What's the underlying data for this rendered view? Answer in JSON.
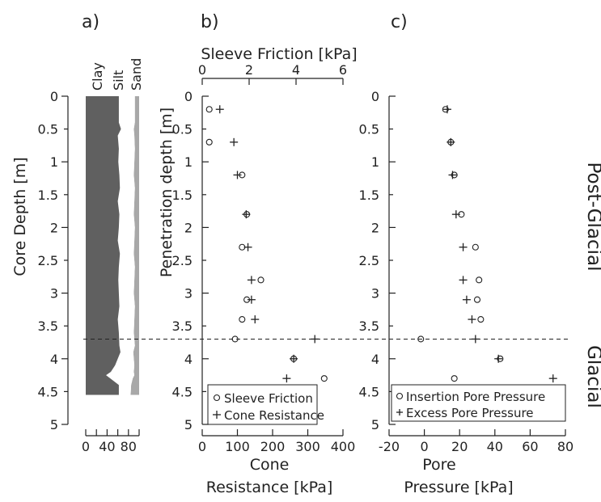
{
  "chart_data": [
    {
      "panel": "a)",
      "type": "area",
      "ylabel": "Core Depth [m]",
      "y_ticks": [
        "0",
        "0.5",
        "1",
        "1.5",
        "2",
        "2.5",
        "3",
        "3.5",
        "4",
        "4.5",
        "5"
      ],
      "ylim": [
        0,
        5
      ],
      "x_ticks": [
        "0",
        "40",
        "80"
      ],
      "xlim": [
        0,
        100
      ],
      "category_labels": [
        "Clay",
        "Silt",
        "Sand"
      ],
      "colors": {
        "clay": "#606060",
        "silt": "#ffffff",
        "sand": "#a8a8a8"
      },
      "depth": [
        0,
        0.4,
        0.5,
        0.6,
        0.8,
        1.0,
        1.2,
        1.4,
        1.6,
        1.8,
        2.0,
        2.2,
        2.4,
        2.6,
        2.8,
        3.0,
        3.2,
        3.4,
        3.6,
        3.8,
        3.9,
        4.0,
        4.1,
        4.2,
        4.25,
        4.3,
        4.4,
        4.55
      ],
      "clay_upper": [
        62,
        62,
        66,
        60,
        62,
        61,
        63,
        64,
        60,
        63,
        62,
        60,
        64,
        62,
        61,
        62,
        63,
        60,
        62,
        63,
        65,
        60,
        55,
        47,
        38,
        46,
        62,
        62
      ],
      "silt_upper": [
        92,
        92,
        90,
        91,
        92,
        91,
        90,
        92,
        91,
        90,
        92,
        91,
        90,
        92,
        91,
        90,
        92,
        91,
        90,
        92,
        89,
        90,
        91,
        90,
        91,
        88,
        85,
        84
      ],
      "sand_upper": [
        100,
        100,
        100,
        100,
        100,
        100,
        100,
        100,
        100,
        100,
        100,
        100,
        100,
        100,
        100,
        100,
        100,
        100,
        100,
        100,
        100,
        100,
        100,
        100,
        100,
        100,
        100,
        100
      ]
    },
    {
      "panel": "b)",
      "type": "scatter",
      "top_xlabel": "Sleeve Friction [kPa]",
      "top_x_ticks": [
        "0",
        "2",
        "4",
        "6"
      ],
      "top_xlim": [
        0,
        6
      ],
      "bottom_xlabel_lines": [
        "Cone",
        "Resistance [kPa]"
      ],
      "bottom_x_ticks": [
        "0",
        "100",
        "200",
        "300",
        "400"
      ],
      "bottom_xlim": [
        0,
        400
      ],
      "ylabel": "Penetration depth [m]",
      "y_ticks": [
        "0",
        "0.5",
        "1",
        "1.5",
        "2",
        "2.5",
        "3",
        "3.5",
        "4",
        "4.5",
        "5"
      ],
      "ylim": [
        0,
        5
      ],
      "series": [
        {
          "name": "Sleeve Friction",
          "marker": "circle",
          "axis": "top",
          "x": [
            0.3,
            0.3,
            1.7,
            1.9,
            1.7,
            2.5,
            1.9,
            1.7,
            1.4,
            3.9,
            5.2
          ],
          "y": [
            0.2,
            0.7,
            1.2,
            1.8,
            2.3,
            2.8,
            3.1,
            3.4,
            3.7,
            4.0,
            4.3
          ]
        },
        {
          "name": "Cone Resistance",
          "marker": "plus",
          "axis": "bottom",
          "x": [
            50,
            90,
            100,
            125,
            130,
            140,
            140,
            150,
            320,
            260,
            240
          ],
          "y": [
            0.2,
            0.7,
            1.2,
            1.8,
            2.3,
            2.8,
            3.1,
            3.4,
            3.7,
            4.0,
            4.3
          ]
        }
      ],
      "legend": [
        "Sleeve Friction",
        "Cone Resistance"
      ],
      "legend_position": "bottom"
    },
    {
      "panel": "c)",
      "type": "scatter",
      "bottom_xlabel_lines": [
        "Pore",
        "Pressure [kPa]"
      ],
      "bottom_x_ticks": [
        "-20",
        "0",
        "20",
        "40",
        "60",
        "80"
      ],
      "bottom_xlim": [
        -20,
        80
      ],
      "y_ticks": [
        "0",
        "0.5",
        "1",
        "1.5",
        "2",
        "2.5",
        "3",
        "3.5",
        "4",
        "4.5",
        "5"
      ],
      "ylim": [
        0,
        5
      ],
      "series": [
        {
          "name": "Insertion Pore Pressure",
          "marker": "circle",
          "x": [
            12,
            15,
            17,
            21,
            29,
            31,
            30,
            32,
            -2,
            43,
            17
          ],
          "y": [
            0.2,
            0.7,
            1.2,
            1.8,
            2.3,
            2.8,
            3.1,
            3.4,
            3.7,
            4.0,
            4.3
          ]
        },
        {
          "name": "Excess Pore Pressure",
          "marker": "plus",
          "x": [
            13,
            15,
            16,
            18,
            22,
            22,
            24,
            27,
            29,
            42,
            73
          ],
          "y": [
            0.2,
            0.7,
            1.2,
            1.8,
            2.3,
            2.8,
            3.1,
            3.4,
            3.7,
            4.0,
            4.3
          ]
        }
      ],
      "legend": [
        "Insertion Pore Pressure",
        "Excess Pore Pressure"
      ],
      "legend_position": "bottom"
    }
  ],
  "boundary_depth": 3.7,
  "zone_labels": [
    "Post-Glacial",
    "Glacial"
  ]
}
